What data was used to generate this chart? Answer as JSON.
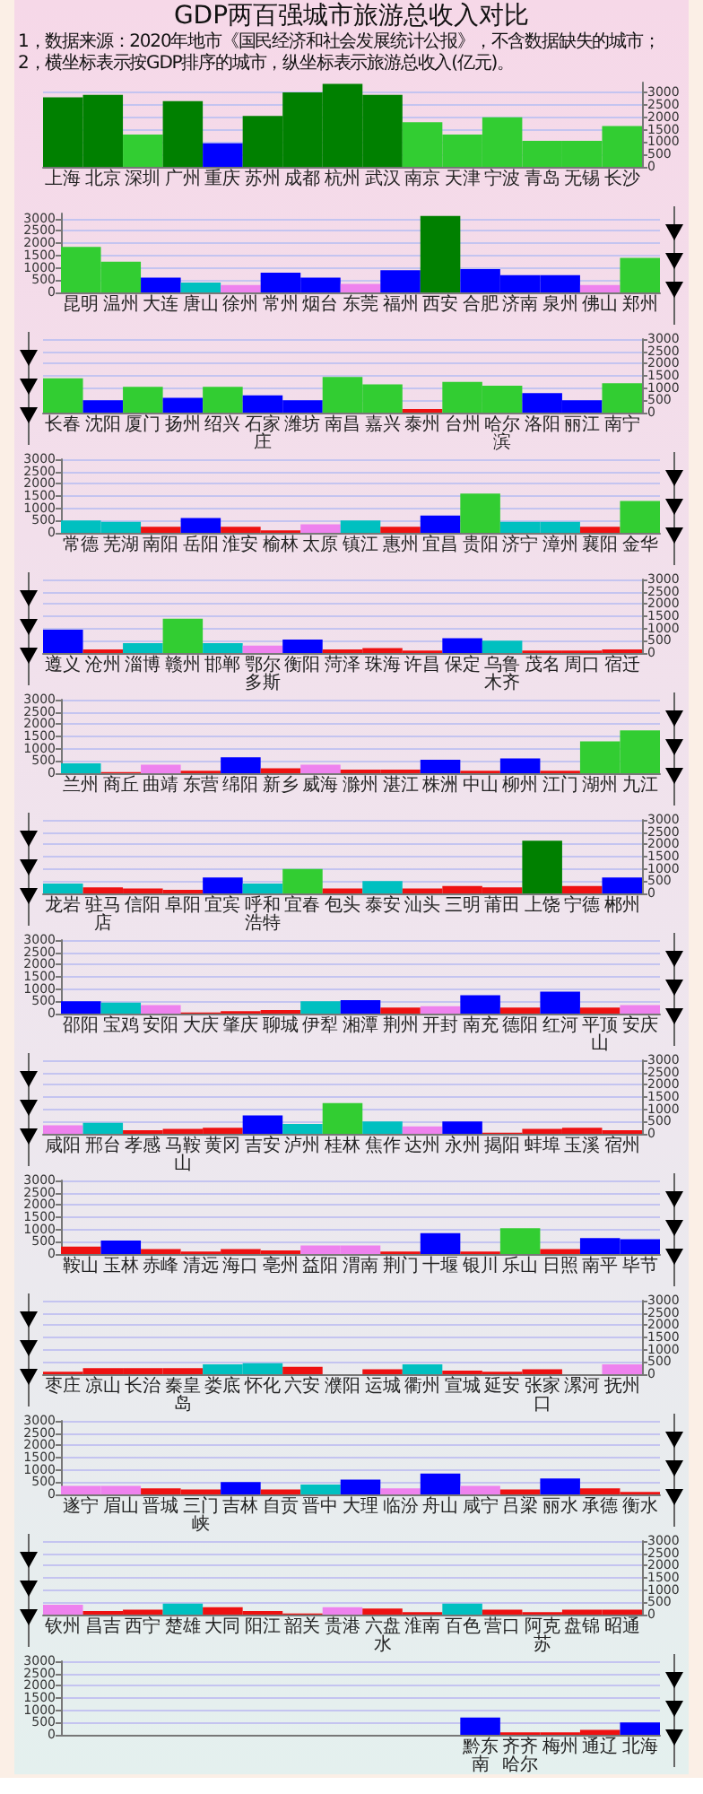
{
  "chart_data": [
    {
      "type": "bar",
      "title": "GDP两百强城市旅游总收入对比",
      "annotations": [
        "1，数据来源：2020年地市《国民经济和社会发展统计公报》，不含数据缺失的城市；",
        "2，横坐标表示按GDP排序的城市，纵坐标表示旅游总收入(亿元)。"
      ],
      "categories": [
        "上海",
        "北京",
        "深圳",
        "广州",
        "重庆",
        "苏州",
        "成都",
        "杭州",
        "武汉",
        "南京",
        "天津",
        "宁波",
        "青岛",
        "无锡",
        "长沙"
      ],
      "values": [
        2800,
        2900,
        1300,
        2650,
        950,
        2050,
        3000,
        3350,
        2900,
        1800,
        1300,
        2000,
        1050,
        1050,
        1650
      ],
      "colors": [
        "#008000",
        "#008000",
        "#32cd32",
        "#008000",
        "#0000ff",
        "#008000",
        "#008000",
        "#008000",
        "#008000",
        "#32cd32",
        "#32cd32",
        "#32cd32",
        "#32cd32",
        "#32cd32",
        "#32cd32"
      ],
      "ylim": [
        0,
        3400
      ],
      "yticks": [
        0,
        500,
        1000,
        1500,
        2000,
        2500,
        3000
      ],
      "grid": "y"
    },
    {
      "type": "bar",
      "categories": [
        "昆明",
        "温州",
        "大连",
        "唐山",
        "徐州",
        "常州",
        "烟台",
        "东莞",
        "福州",
        "西安",
        "合肥",
        "济南",
        "泉州",
        "佛山",
        "郑州"
      ],
      "values": [
        1850,
        1250,
        600,
        400,
        300,
        800,
        600,
        350,
        900,
        3100,
        950,
        700,
        700,
        300,
        1400
      ],
      "colors": [
        "#32cd32",
        "#32cd32",
        "#0000ff",
        "#00c0c0",
        "#ee82ee",
        "#0000ff",
        "#0000ff",
        "#ee82ee",
        "#0000ff",
        "#008000",
        "#0000ff",
        "#0000ff",
        "#0000ff",
        "#ee82ee",
        "#32cd32"
      ],
      "ylim": [
        0,
        3200
      ],
      "yticks": [
        0,
        500,
        1000,
        1500,
        2000,
        2500,
        3000
      ],
      "grid": "y"
    },
    {
      "type": "bar",
      "categories": [
        "长春",
        "沈阳",
        "厦门",
        "扬州",
        "绍兴",
        "石家庄",
        "潍坊",
        "南昌",
        "嘉兴",
        "泰州",
        "台州",
        "哈尔滨",
        "洛阳",
        "丽江",
        "南宁"
      ],
      "values": [
        1400,
        500,
        1050,
        600,
        1050,
        700,
        500,
        1450,
        1150,
        150,
        1250,
        1100,
        800,
        500,
        1200
      ],
      "colors": [
        "#32cd32",
        "#0000ff",
        "#32cd32",
        "#0000ff",
        "#32cd32",
        "#0000ff",
        "#0000ff",
        "#32cd32",
        "#32cd32",
        "#ee1111",
        "#32cd32",
        "#32cd32",
        "#0000ff",
        "#0000ff",
        "#32cd32"
      ],
      "ylim": [
        0,
        3000
      ],
      "yticks": [
        0,
        500,
        1000,
        1500,
        2000,
        2500,
        3000
      ],
      "grid": "y"
    },
    {
      "type": "bar",
      "categories": [
        "常德",
        "芜湖",
        "南阳",
        "岳阳",
        "淮安",
        "榆林",
        "太原",
        "镇江",
        "惠州",
        "宜昌",
        "贵阳",
        "济宁",
        "漳州",
        "襄阳",
        "金华"
      ],
      "values": [
        500,
        450,
        250,
        600,
        250,
        100,
        350,
        500,
        250,
        700,
        1600,
        450,
        450,
        250,
        1300
      ],
      "colors": [
        "#00c0c0",
        "#00c0c0",
        "#ee1111",
        "#0000ff",
        "#ee1111",
        "#ee1111",
        "#ee82ee",
        "#00c0c0",
        "#ee1111",
        "#0000ff",
        "#32cd32",
        "#00c0c0",
        "#00c0c0",
        "#ee1111",
        "#32cd32"
      ],
      "ylim": [
        0,
        3000
      ],
      "yticks": [
        0,
        500,
        1000,
        1500,
        2000,
        2500,
        3000
      ],
      "grid": "y"
    },
    {
      "type": "bar",
      "categories": [
        "遵义",
        "沧州",
        "淄博",
        "赣州",
        "邯郸",
        "鄂尔多斯",
        "衡阳",
        "菏泽",
        "珠海",
        "许昌",
        "保定",
        "乌鲁木齐",
        "茂名",
        "周口",
        "宿迁"
      ],
      "values": [
        950,
        150,
        400,
        1400,
        400,
        300,
        550,
        150,
        200,
        100,
        600,
        500,
        100,
        100,
        150
      ],
      "colors": [
        "#0000ff",
        "#ee1111",
        "#00c0c0",
        "#32cd32",
        "#00c0c0",
        "#ee82ee",
        "#0000ff",
        "#ee1111",
        "#ee1111",
        "#ee1111",
        "#0000ff",
        "#00c0c0",
        "#ee1111",
        "#ee1111",
        "#ee1111"
      ],
      "ylim": [
        0,
        3000
      ],
      "yticks": [
        0,
        500,
        1000,
        1500,
        2000,
        2500,
        3000
      ],
      "grid": "y"
    },
    {
      "type": "bar",
      "categories": [
        "兰州",
        "商丘",
        "曲靖",
        "东营",
        "绵阳",
        "新乡",
        "威海",
        "滁州",
        "湛江",
        "株洲",
        "中山",
        "柳州",
        "江门",
        "湖州",
        "九江"
      ],
      "values": [
        400,
        50,
        350,
        100,
        650,
        200,
        350,
        150,
        150,
        550,
        100,
        600,
        100,
        1300,
        1750
      ],
      "colors": [
        "#00c0c0",
        "#ee1111",
        "#ee82ee",
        "#ee1111",
        "#0000ff",
        "#ee1111",
        "#ee82ee",
        "#ee1111",
        "#ee1111",
        "#0000ff",
        "#ee1111",
        "#0000ff",
        "#ee1111",
        "#32cd32",
        "#32cd32"
      ],
      "ylim": [
        0,
        3000
      ],
      "yticks": [
        0,
        500,
        1000,
        1500,
        2000,
        2500,
        3000
      ],
      "grid": "y"
    },
    {
      "type": "bar",
      "categories": [
        "龙岩",
        "驻马店",
        "信阳",
        "阜阳",
        "宜宾",
        "呼和浩特",
        "宜春",
        "包头",
        "泰安",
        "汕头",
        "三明",
        "莆田",
        "上饶",
        "宁德",
        "郴州"
      ],
      "values": [
        400,
        250,
        200,
        150,
        650,
        400,
        1000,
        200,
        500,
        200,
        300,
        250,
        2150,
        300,
        650
      ],
      "colors": [
        "#00c0c0",
        "#ee1111",
        "#ee1111",
        "#ee1111",
        "#0000ff",
        "#00c0c0",
        "#32cd32",
        "#ee1111",
        "#00c0c0",
        "#ee1111",
        "#ee1111",
        "#ee1111",
        "#008000",
        "#ee1111",
        "#0000ff"
      ],
      "ylim": [
        0,
        3000
      ],
      "yticks": [
        0,
        500,
        1000,
        1500,
        2000,
        2500,
        3000
      ],
      "grid": "y"
    },
    {
      "type": "bar",
      "categories": [
        "邵阳",
        "宝鸡",
        "安阳",
        "大庆",
        "肇庆",
        "聊城",
        "伊犁",
        "湘潭",
        "荆州",
        "开封",
        "南充",
        "德阳",
        "红河",
        "平顶山",
        "安庆"
      ],
      "values": [
        500,
        450,
        350,
        50,
        100,
        150,
        500,
        550,
        250,
        300,
        750,
        250,
        900,
        250,
        350
      ],
      "colors": [
        "#0000ff",
        "#00c0c0",
        "#ee82ee",
        "#ee1111",
        "#ee1111",
        "#ee1111",
        "#00c0c0",
        "#0000ff",
        "#ee1111",
        "#ee82ee",
        "#0000ff",
        "#ee1111",
        "#0000ff",
        "#ee1111",
        "#ee82ee"
      ],
      "ylim": [
        0,
        3000
      ],
      "yticks": [
        0,
        500,
        1000,
        1500,
        2000,
        2500,
        3000
      ],
      "grid": "y"
    },
    {
      "type": "bar",
      "categories": [
        "咸阳",
        "邢台",
        "孝感",
        "马鞍山",
        "黄冈",
        "吉安",
        "泸州",
        "桂林",
        "焦作",
        "达州",
        "永州",
        "揭阳",
        "蚌埠",
        "玉溪",
        "宿州"
      ],
      "values": [
        350,
        450,
        150,
        200,
        250,
        750,
        400,
        1250,
        500,
        300,
        500,
        50,
        200,
        250,
        150
      ],
      "colors": [
        "#ee82ee",
        "#00c0c0",
        "#ee1111",
        "#ee1111",
        "#ee1111",
        "#0000ff",
        "#00c0c0",
        "#32cd32",
        "#00c0c0",
        "#ee82ee",
        "#0000ff",
        "#ee1111",
        "#ee1111",
        "#ee1111",
        "#ee1111"
      ],
      "ylim": [
        0,
        3000
      ],
      "yticks": [
        0,
        500,
        1000,
        1500,
        2000,
        2500,
        3000
      ],
      "grid": "y"
    },
    {
      "type": "bar",
      "categories": [
        "鞍山",
        "玉林",
        "赤峰",
        "清远",
        "海口",
        "亳州",
        "益阳",
        "渭南",
        "荆门",
        "十堰",
        "银川",
        "乐山",
        "日照",
        "南平",
        "毕节"
      ],
      "values": [
        300,
        550,
        200,
        100,
        200,
        150,
        350,
        350,
        100,
        850,
        100,
        1050,
        200,
        650,
        600
      ],
      "colors": [
        "#ee1111",
        "#0000ff",
        "#ee1111",
        "#ee1111",
        "#ee1111",
        "#ee1111",
        "#ee82ee",
        "#ee82ee",
        "#ee1111",
        "#0000ff",
        "#ee1111",
        "#32cd32",
        "#ee1111",
        "#0000ff",
        "#0000ff"
      ],
      "ylim": [
        0,
        3000
      ],
      "yticks": [
        0,
        500,
        1000,
        1500,
        2000,
        2500,
        3000
      ],
      "grid": "y"
    },
    {
      "type": "bar",
      "categories": [
        "枣庄",
        "凉山",
        "长治",
        "秦皇岛",
        "娄底",
        "怀化",
        "六安",
        "濮阳",
        "运城",
        "衢州",
        "宣城",
        "延安",
        "张家口",
        "漯河",
        "抚州"
      ],
      "values": [
        100,
        250,
        250,
        250,
        400,
        450,
        300,
        null,
        200,
        400,
        150,
        100,
        200,
        null,
        400
      ],
      "colors": [
        "#ee1111",
        "#ee1111",
        "#ee1111",
        "#ee1111",
        "#00c0c0",
        "#00c0c0",
        "#ee1111",
        null,
        "#ee1111",
        "#00c0c0",
        "#ee1111",
        "#ee1111",
        "#ee1111",
        null,
        "#ee82ee"
      ],
      "ylim": [
        0,
        3000
      ],
      "yticks": [
        0,
        500,
        1000,
        1500,
        2000,
        2500,
        3000
      ],
      "grid": "y"
    },
    {
      "type": "bar",
      "categories": [
        "遂宁",
        "眉山",
        "晋城",
        "三门峡",
        "吉林",
        "自贡",
        "晋中",
        "大理",
        "临汾",
        "舟山",
        "咸宁",
        "吕梁",
        "丽水",
        "承德",
        "衡水"
      ],
      "values": [
        350,
        350,
        250,
        200,
        500,
        200,
        400,
        600,
        250,
        850,
        350,
        200,
        650,
        250,
        100
      ],
      "colors": [
        "#ee82ee",
        "#ee82ee",
        "#ee1111",
        "#ee1111",
        "#0000ff",
        "#ee1111",
        "#00c0c0",
        "#0000ff",
        "#ee82ee",
        "#0000ff",
        "#ee82ee",
        "#ee1111",
        "#0000ff",
        "#ee1111",
        "#ee1111"
      ],
      "ylim": [
        0,
        3000
      ],
      "yticks": [
        0,
        500,
        1000,
        1500,
        2000,
        2500,
        3000
      ],
      "grid": "y"
    },
    {
      "type": "bar",
      "categories": [
        "钦州",
        "昌吉",
        "西宁",
        "楚雄",
        "大同",
        "阳江",
        "韶关",
        "贵港",
        "六盘水",
        "淮南",
        "百色",
        "营口",
        "阿克苏",
        "盘锦",
        "昭通"
      ],
      "values": [
        400,
        150,
        200,
        450,
        300,
        150,
        50,
        300,
        250,
        100,
        450,
        200,
        100,
        200,
        200
      ],
      "colors": [
        "#ee82ee",
        "#ee1111",
        "#ee1111",
        "#00c0c0",
        "#ee1111",
        "#ee1111",
        "#ee1111",
        "#ee82ee",
        "#ee1111",
        "#ee1111",
        "#00c0c0",
        "#ee1111",
        "#ee1111",
        "#ee1111",
        "#ee1111"
      ],
      "ylim": [
        0,
        3000
      ],
      "yticks": [
        0,
        500,
        1000,
        1500,
        2000,
        2500,
        3000
      ],
      "grid": "y"
    },
    {
      "type": "bar",
      "categories": [
        null,
        null,
        null,
        null,
        null,
        null,
        null,
        null,
        null,
        null,
        "黔东南",
        "齐齐哈尔",
        "梅州",
        "通辽",
        "北海"
      ],
      "values": [
        null,
        null,
        null,
        null,
        null,
        null,
        null,
        null,
        null,
        null,
        700,
        100,
        100,
        200,
        500
      ],
      "colors": [
        null,
        null,
        null,
        null,
        null,
        null,
        null,
        null,
        null,
        null,
        "#0000ff",
        "#ee1111",
        "#ee1111",
        "#ee1111",
        "#0000ff"
      ],
      "ylim": [
        0,
        3000
      ],
      "yticks": [
        0,
        500,
        1000,
        1500,
        2000,
        2500,
        3000
      ],
      "grid": "y"
    }
  ]
}
